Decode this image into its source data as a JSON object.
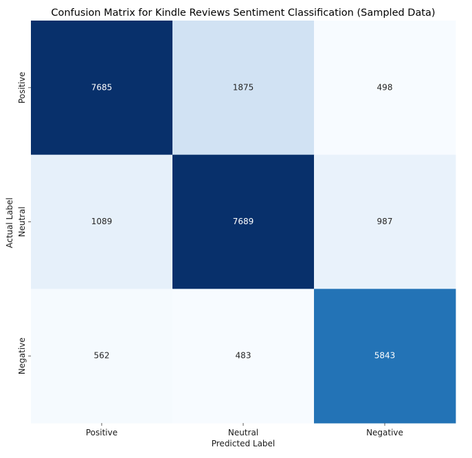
{
  "chart_data": {
    "type": "heatmap",
    "title": "Confusion Matrix for Kindle Reviews Sentiment Classification (Sampled Data)",
    "xlabel": "Predicted Label",
    "ylabel": "Actual Label",
    "x_categories": [
      "Positive",
      "Neutral",
      "Negative"
    ],
    "y_categories": [
      "Positive",
      "Neutral",
      "Negative"
    ],
    "values": [
      [
        7685,
        1875,
        498
      ],
      [
        1089,
        7689,
        987
      ],
      [
        562,
        483,
        5843
      ]
    ],
    "colormap": "Blues",
    "value_range": [
      483,
      7689
    ],
    "annotated": true,
    "colorbar": false,
    "colors": {
      "low": "#f7fbff",
      "high": "#08306b",
      "text_dark": "#262626",
      "text_light": "#ffffff"
    }
  }
}
